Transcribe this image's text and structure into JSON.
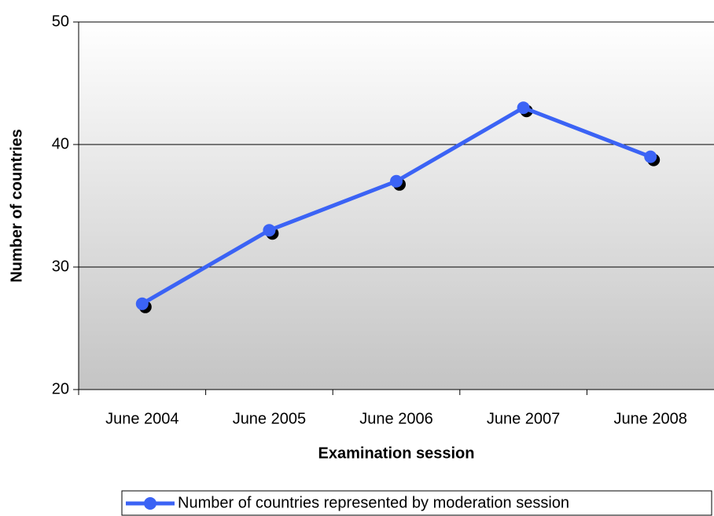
{
  "chart_data": {
    "type": "line",
    "x_label": "Examination session",
    "y_label": "Number of countries",
    "categories": [
      "June 2004",
      "June 2005",
      "June 2006",
      "June 2007",
      "June 2008"
    ],
    "series": [
      {
        "name": "Number of countries represented by moderation session",
        "color": "#3b63f5",
        "values": [
          27,
          33,
          37,
          43,
          39
        ]
      }
    ],
    "ylim": [
      20,
      50
    ],
    "yticks": [
      20,
      30,
      40,
      50
    ],
    "grid": true,
    "legend": "bottom"
  }
}
